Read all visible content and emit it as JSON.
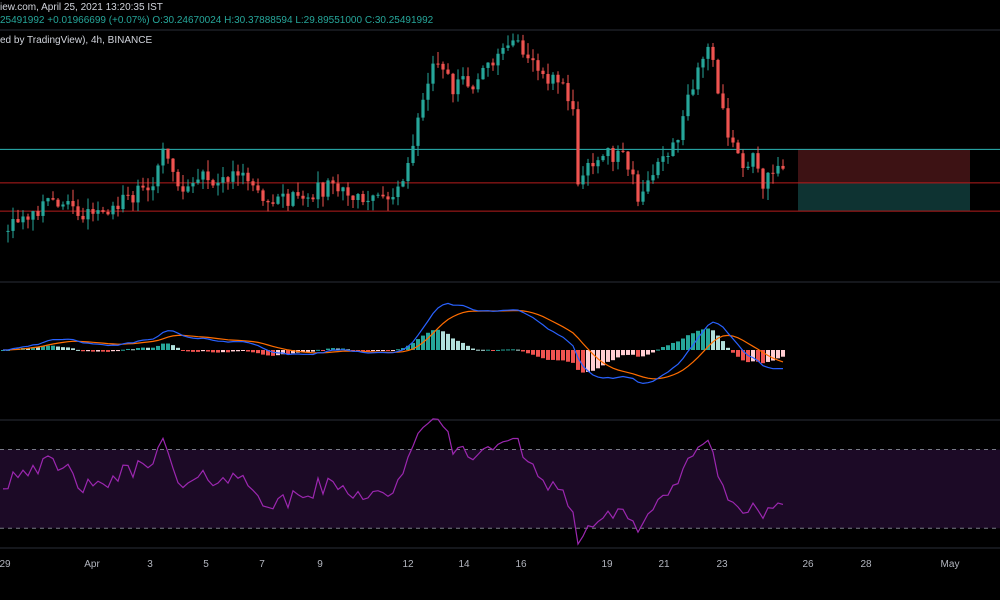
{
  "header": {
    "source_text": "iew.com, April 25, 2021 13:20:35 IST",
    "price_line": {
      "last": "25491992",
      "change": "+0.01966699 (+0.07%)",
      "open_label": "O:",
      "open": "30.24670024",
      "high_label": "H:",
      "high": "30.37888594",
      "low_label": "L:",
      "low": "29.89551000",
      "close_label": "C:",
      "close": "30.25491992"
    },
    "chart_info": "ed by TradingView), 4h, BINANCE"
  },
  "colors": {
    "background": "#000000",
    "up": "#26a69a",
    "down": "#ef5350",
    "hist_up_strong": "#26a69a",
    "hist_up_weak": "#b2dfdb",
    "hist_down_strong": "#ef5350",
    "hist_down_weak": "#ffcdd2",
    "macd_line": "#2962ff",
    "signal_line": "#ff6d00",
    "rsi_line": "#9c27b0",
    "rsi_band": "#1c0a26",
    "support_line": "#2bb6b6",
    "resistance_line": "#b71c1c",
    "stop_zone": "#3d1214",
    "target_zone": "#0e3332"
  },
  "chart_data": {
    "type": "candlestick",
    "x_ticks": [
      "29",
      "Apr",
      "3",
      "5",
      "7",
      "9",
      "12",
      "14",
      "16",
      "19",
      "21",
      "23",
      "26",
      "28",
      "May"
    ],
    "price_path": [
      [
        0,
        28.0
      ],
      [
        5,
        28.6
      ],
      [
        10,
        28.8
      ],
      [
        15,
        28.7
      ],
      [
        18,
        28.2
      ],
      [
        21,
        28.7
      ],
      [
        25,
        29.0
      ],
      [
        30,
        29.9
      ],
      [
        32,
        30.8
      ],
      [
        34,
        30.0
      ],
      [
        36,
        29.3
      ],
      [
        40,
        29.8
      ],
      [
        45,
        30.0
      ],
      [
        50,
        29.8
      ],
      [
        53,
        29.1
      ],
      [
        55,
        28.9
      ],
      [
        60,
        29.2
      ],
      [
        65,
        29.5
      ],
      [
        70,
        29.3
      ],
      [
        75,
        29.1
      ],
      [
        80,
        29.5
      ],
      [
        82,
        31.0
      ],
      [
        84,
        33.0
      ],
      [
        86,
        34.6
      ],
      [
        88,
        34.0
      ],
      [
        90,
        33.2
      ],
      [
        92,
        33.9
      ],
      [
        95,
        33.5
      ],
      [
        98,
        34.5
      ],
      [
        100,
        35.1
      ],
      [
        104,
        34.9
      ],
      [
        108,
        34.0
      ],
      [
        112,
        33.6
      ],
      [
        114,
        32.5
      ],
      [
        115,
        29.5
      ],
      [
        117,
        30.4
      ],
      [
        120,
        30.8
      ],
      [
        124,
        30.6
      ],
      [
        127,
        29.3
      ],
      [
        130,
        30.0
      ],
      [
        133,
        30.6
      ],
      [
        135,
        31.5
      ],
      [
        137,
        33.0
      ],
      [
        139,
        34.3
      ],
      [
        141,
        34.8
      ],
      [
        143,
        33.5
      ],
      [
        145,
        31.6
      ],
      [
        148,
        30.3
      ],
      [
        150,
        30.7
      ],
      [
        152,
        29.8
      ],
      [
        154,
        29.9
      ],
      [
        156,
        30.25
      ]
    ],
    "levels": {
      "support": 31.0,
      "resistance": 29.7,
      "lower": 28.6
    },
    "price_range": [
      26.0,
      36.5
    ],
    "macd_range": [
      -1.5,
      1.5
    ],
    "rsi": {
      "range": [
        20,
        85
      ],
      "upper_band": 70,
      "lower_band": 30
    }
  }
}
